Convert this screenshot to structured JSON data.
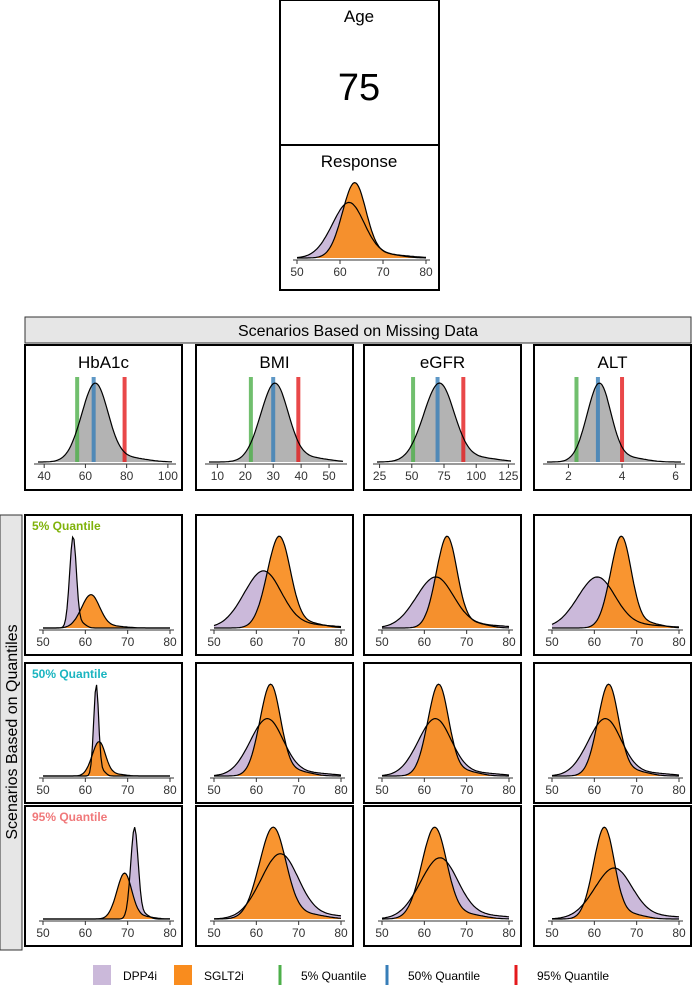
{
  "age": {
    "title": "Age",
    "value": "75"
  },
  "response": {
    "title": "Response",
    "ticks": [
      "50",
      "60",
      "70",
      "80"
    ],
    "xlim": [
      50,
      80
    ]
  },
  "missing": {
    "header": "Scenarios Based on Missing Data",
    "panels": [
      {
        "title": "HbA1c",
        "ticks": [
          "40",
          "60",
          "80",
          "100"
        ],
        "tickvals": [
          40,
          60,
          80,
          100
        ],
        "xlim": [
          37,
          102
        ],
        "mean": 64,
        "sd": 6.5,
        "q5": 56,
        "q50": 64,
        "q95": 79
      },
      {
        "title": "BMI",
        "ticks": [
          "10",
          "20",
          "30",
          "40",
          "50"
        ],
        "tickvals": [
          10,
          20,
          30,
          40,
          50
        ],
        "xlim": [
          7,
          55
        ],
        "mean": 30,
        "sd": 5,
        "q5": 22,
        "q50": 30,
        "q95": 39
      },
      {
        "title": "eGFR",
        "ticks": [
          "25",
          "50",
          "75",
          "100",
          "125"
        ],
        "tickvals": [
          25,
          50,
          75,
          100,
          125
        ],
        "xlim": [
          23,
          127
        ],
        "mean": 70,
        "sd": 12,
        "q5": 51,
        "q50": 70,
        "q95": 90
      },
      {
        "title": "ALT",
        "ticks": [
          "2",
          "4",
          "6"
        ],
        "tickvals": [
          2,
          4,
          6
        ],
        "xlim": [
          1.2,
          6.2
        ],
        "mean": 3.1,
        "sd": 0.45,
        "q5": 2.3,
        "q50": 3.1,
        "q95": 4.0
      }
    ]
  },
  "quantiles": {
    "header": "Scenarios Based on Quantiles",
    "rows": [
      {
        "label": "5% Quantile",
        "color": "#7fb20a"
      },
      {
        "label": "50% Quantile",
        "color": "#1ab5c0"
      },
      {
        "label": "95% Quantile",
        "color": "#f0787a"
      }
    ],
    "ticks": [
      "50",
      "60",
      "70",
      "80"
    ]
  },
  "legend": [
    {
      "label": "DPP4i",
      "type": "fill",
      "color": "#cbb9da"
    },
    {
      "label": "SGLT2i",
      "type": "fill",
      "color": "#f98c1e"
    },
    {
      "label": "5% Quantile",
      "type": "line",
      "color": "#4daf4a"
    },
    {
      "label": "50% Quantile",
      "type": "line",
      "color": "#377eb8"
    },
    {
      "label": "95% Quantile",
      "type": "line",
      "color": "#e41a1c"
    }
  ],
  "chart_data": [
    {
      "type": "area",
      "title": "Response",
      "xlim": [
        50,
        80
      ],
      "series": [
        {
          "name": "DPP4i",
          "peak_x": 62,
          "spread": 4.0
        },
        {
          "name": "SGLT2i",
          "peak_x": 63,
          "spread": 2.8
        }
      ]
    },
    {
      "type": "area",
      "title": "HbA1c",
      "xlim": [
        40,
        100
      ],
      "quantile_lines": {
        "5% Quantile": 56,
        "50% Quantile": 64,
        "95% Quantile": 79
      }
    },
    {
      "type": "area",
      "title": "BMI",
      "xlim": [
        10,
        50
      ],
      "quantile_lines": {
        "5% Quantile": 22,
        "50% Quantile": 30,
        "95% Quantile": 39
      }
    },
    {
      "type": "area",
      "title": "eGFR",
      "xlim": [
        25,
        125
      ],
      "quantile_lines": {
        "5% Quantile": 51,
        "50% Quantile": 70,
        "95% Quantile": 90
      }
    },
    {
      "type": "area",
      "title": "ALT",
      "xlim": [
        2,
        6
      ],
      "quantile_lines": {
        "5% Quantile": 2.3,
        "50% Quantile": 3.1,
        "95% Quantile": 4.0
      }
    },
    {
      "type": "area",
      "xlim": [
        50,
        80
      ],
      "grid_rows": [
        "5% Quantile",
        "50% Quantile",
        "95% Quantile"
      ],
      "grid_cols": [
        "HbA1c",
        "BMI",
        "eGFR",
        "ALT"
      ],
      "cells": [
        [
          {
            "DPP4i": [
              57,
              0.8
            ],
            "SGLT2i": [
              61,
              2.2
            ]
          },
          {
            "DPP4i": [
              61,
              4.5
            ],
            "SGLT2i": [
              65,
              2.8
            ]
          },
          {
            "DPP4i": [
              62,
              4.5
            ],
            "SGLT2i": [
              65,
              2.5
            ]
          },
          {
            "DPP4i": [
              60,
              4.5
            ],
            "SGLT2i": [
              66,
              2.5
            ]
          }
        ],
        [
          {
            "DPP4i": [
              62.5,
              0.6
            ],
            "SGLT2i": [
              63,
              1.6
            ]
          },
          {
            "DPP4i": [
              62,
              4.0
            ],
            "SGLT2i": [
              63,
              2.5
            ]
          },
          {
            "DPP4i": [
              62,
              4.0
            ],
            "SGLT2i": [
              63,
              2.5
            ]
          },
          {
            "DPP4i": [
              62,
              4.0
            ],
            "SGLT2i": [
              63,
              2.5
            ]
          }
        ],
        [
          {
            "DPP4i": [
              71.5,
              0.9
            ],
            "SGLT2i": [
              69,
              1.8
            ]
          },
          {
            "DPP4i": [
              65,
              4.5
            ],
            "SGLT2i": [
              63.5,
              3.2
            ]
          },
          {
            "DPP4i": [
              63,
              4.5
            ],
            "SGLT2i": [
              62,
              3.0
            ]
          },
          {
            "DPP4i": [
              64,
              4.5
            ],
            "SGLT2i": [
              62,
              2.5
            ]
          }
        ]
      ]
    }
  ]
}
